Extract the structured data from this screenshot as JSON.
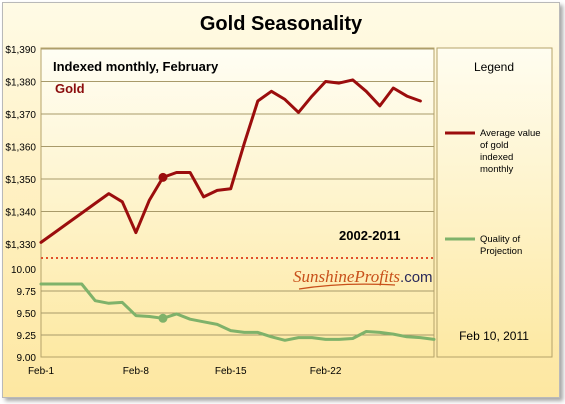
{
  "chart_data": {
    "type": "line",
    "title": "Gold Seasonality",
    "subtitle": "Indexed monthly, February",
    "top_label": "Gold",
    "period_label": "2002-2011",
    "date_label": "Feb 10, 2011",
    "watermark": {
      "part1": "Sunshine",
      "part2": "Profits",
      "part3": ".com"
    },
    "legend": {
      "title": "Legend",
      "items": [
        {
          "label_lines": [
            "Average value",
            "of gold",
            "indexed",
            "monthly"
          ],
          "color": "#9b0d0d"
        },
        {
          "label_lines": [
            "Quality of",
            "Projection"
          ],
          "color": "#7fb26a"
        }
      ]
    },
    "x_ticks": [
      "Feb-1",
      "Feb-8",
      "Feb-15",
      "Feb-22"
    ],
    "top_panel": {
      "ylim": [
        1330,
        1390
      ],
      "yticks": [
        "$1,330",
        "$1,340",
        "$1,350",
        "$1,360",
        "$1,370",
        "$1,380",
        "$1,390"
      ],
      "series": [
        {
          "name": "Average value of gold indexed monthly",
          "color": "#9b0d0d",
          "x": [
            1,
            2,
            3,
            4,
            5,
            6,
            7,
            8,
            9,
            10,
            11,
            12,
            13,
            14,
            15,
            16,
            17,
            18,
            19,
            20,
            21,
            22,
            23,
            24,
            25,
            26,
            27,
            28,
            29
          ],
          "values": [
            1330.5,
            1333.5,
            1336.5,
            1339.5,
            1342.5,
            1345.5,
            1343,
            1333.5,
            1343.5,
            1350.5,
            1352,
            1352,
            1344.5,
            1346.5,
            1347,
            1361,
            1374,
            1377,
            1374.5,
            1370.5,
            1375.5,
            1380,
            1379.5,
            1380.5,
            1377,
            1372.5,
            1378,
            1375.5,
            1374
          ],
          "highlight_x": 10
        }
      ]
    },
    "bottom_panel": {
      "ylim": [
        9.0,
        10.0
      ],
      "yticks": [
        "9.00",
        "9.25",
        "9.50",
        "9.75",
        "10.00"
      ],
      "series": [
        {
          "name": "Quality of Projection",
          "color": "#7fb26a",
          "x": [
            1,
            2,
            3,
            4,
            5,
            6,
            7,
            8,
            9,
            10,
            11,
            12,
            13,
            14,
            15,
            16,
            17,
            18,
            19,
            20,
            21,
            22,
            23,
            24,
            25,
            26,
            27,
            28,
            29,
            30
          ],
          "values": [
            9.83,
            9.83,
            9.83,
            9.83,
            9.64,
            9.61,
            9.62,
            9.47,
            9.46,
            9.44,
            9.49,
            9.43,
            9.4,
            9.37,
            9.3,
            9.28,
            9.28,
            9.23,
            9.19,
            9.22,
            9.22,
            9.2,
            9.2,
            9.21,
            9.29,
            9.28,
            9.26,
            9.23,
            9.22,
            9.2
          ],
          "highlight_x": 10
        }
      ]
    }
  }
}
